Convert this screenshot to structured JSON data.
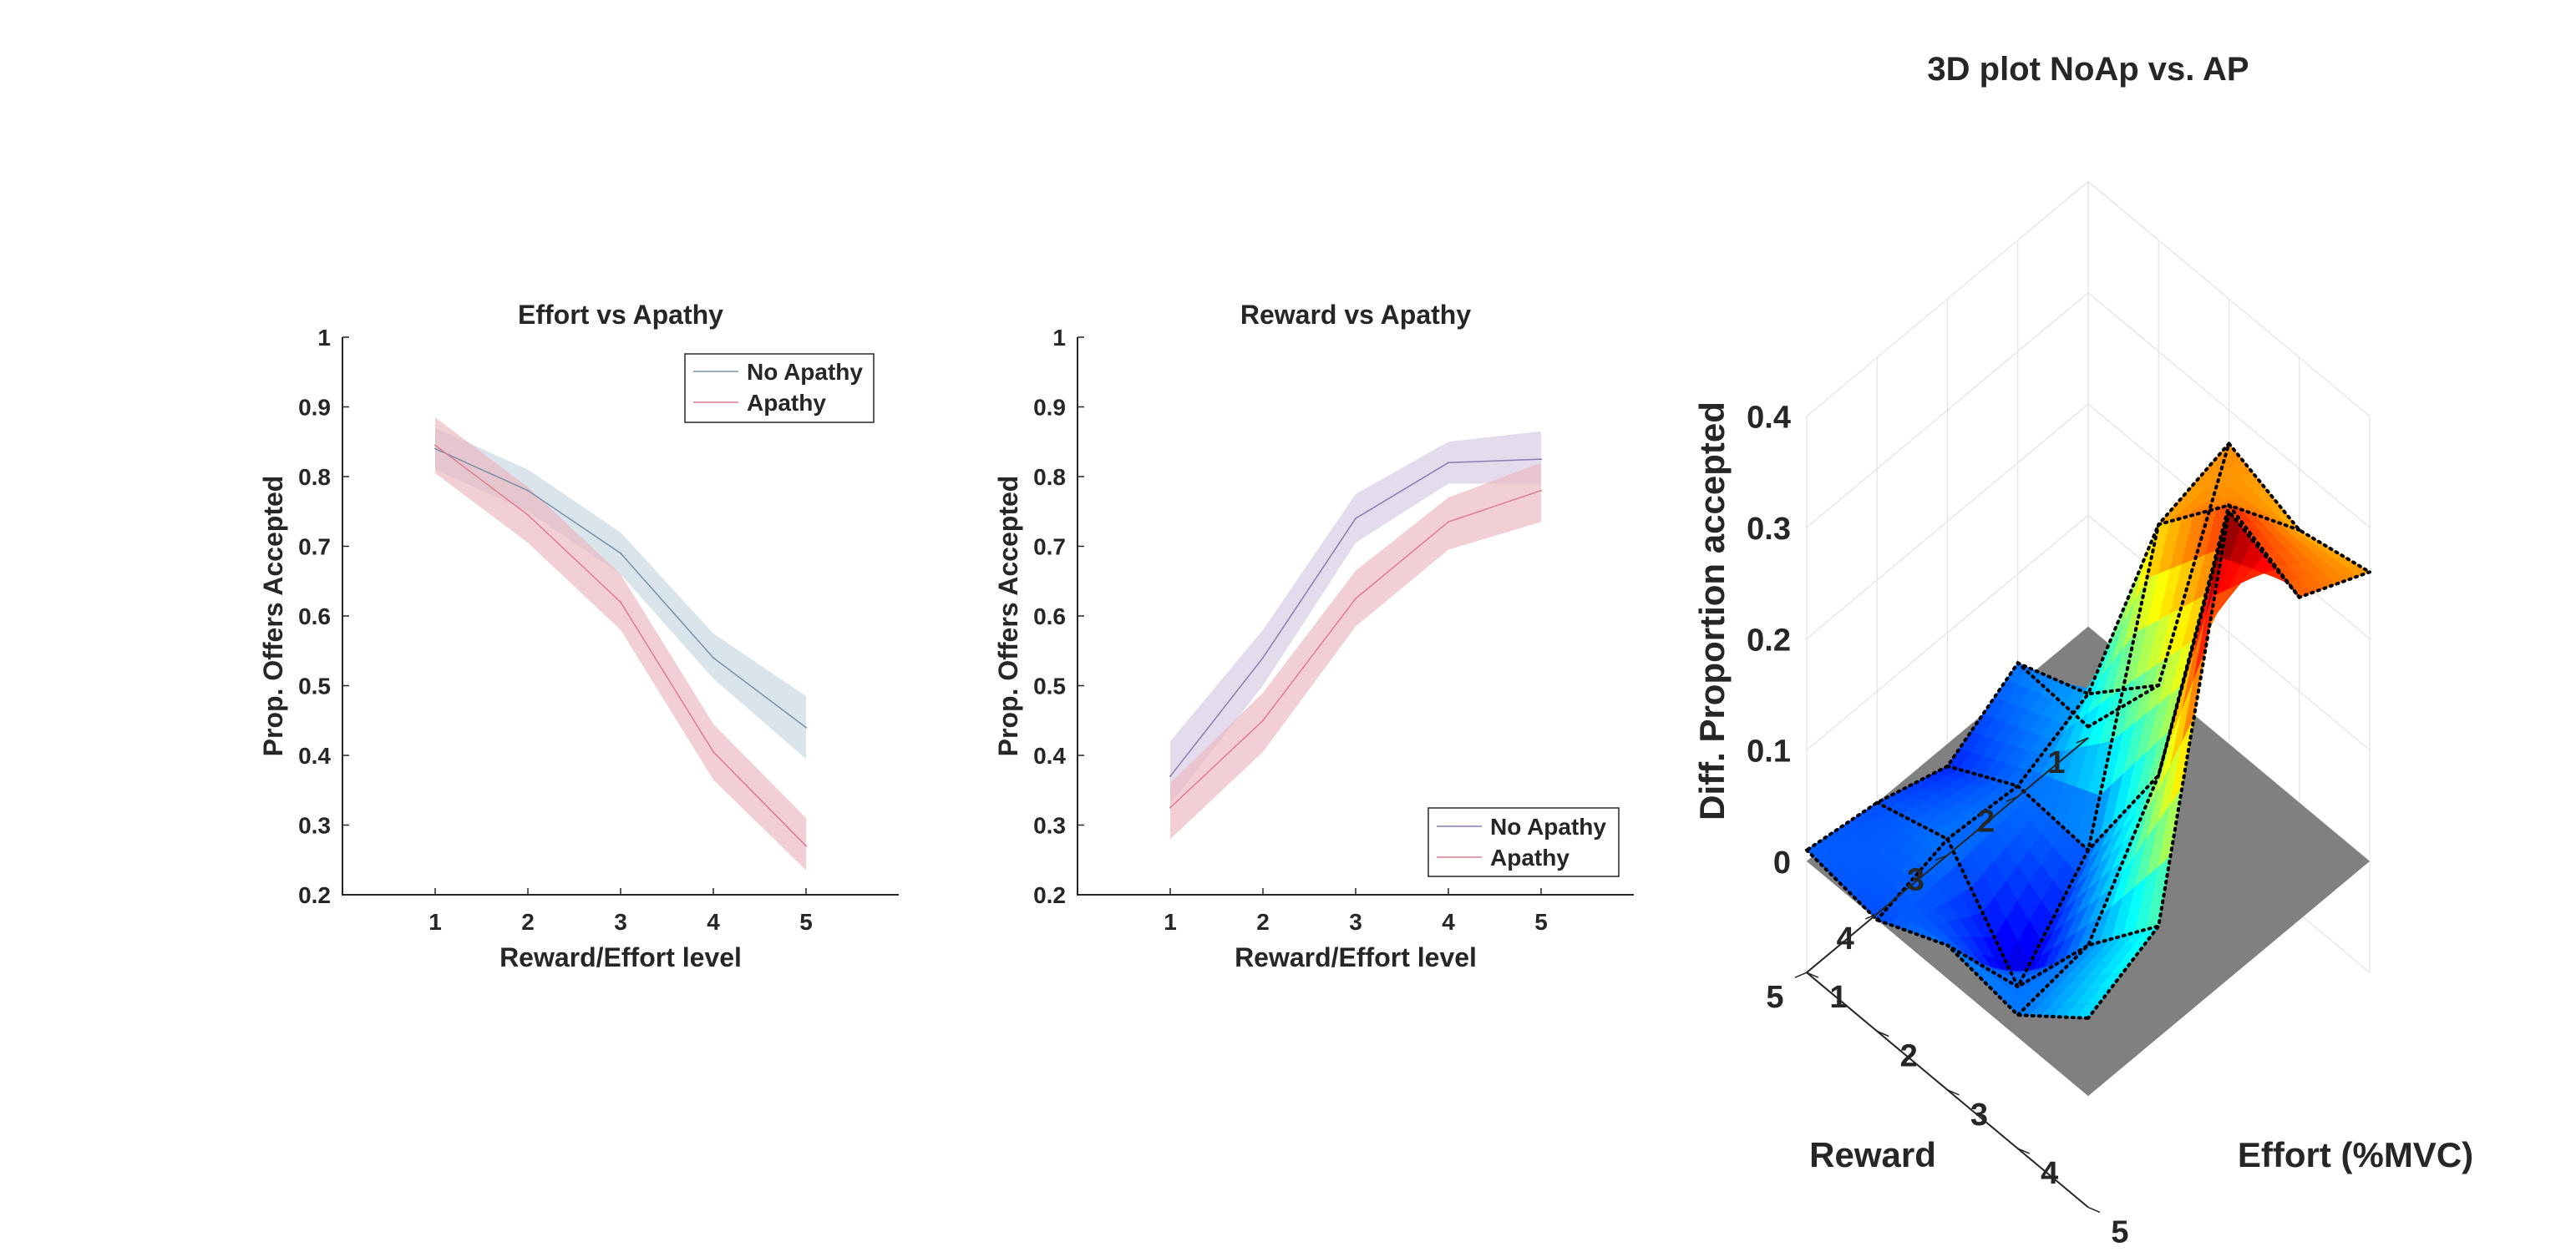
{
  "chart_data": [
    {
      "type": "line",
      "title": "Effort vs Apathy",
      "xlabel": "Reward/Effort level",
      "ylabel": "Prop. Offers Accepted",
      "x": [
        1,
        2,
        3,
        4,
        5
      ],
      "xticks": [
        "1",
        "2",
        "3",
        "4",
        "5"
      ],
      "yticks": [
        "0.2",
        "0.3",
        "0.4",
        "0.5",
        "0.6",
        "0.7",
        "0.8",
        "0.9",
        "1"
      ],
      "xlim": [
        0,
        6
      ],
      "ylim": [
        0.2,
        1
      ],
      "legend": "top-right",
      "series": [
        {
          "name": "No Apathy",
          "values": [
            0.84,
            0.78,
            0.69,
            0.54,
            0.44
          ],
          "lower": [
            0.81,
            0.75,
            0.66,
            0.51,
            0.395
          ],
          "upper": [
            0.87,
            0.81,
            0.72,
            0.575,
            0.485
          ],
          "color": "#7a8fa8",
          "band": "#c4d5e0"
        },
        {
          "name": "Apathy",
          "values": [
            0.845,
            0.745,
            0.62,
            0.405,
            0.27
          ],
          "lower": [
            0.805,
            0.705,
            0.58,
            0.365,
            0.235
          ],
          "upper": [
            0.885,
            0.785,
            0.66,
            0.445,
            0.31
          ],
          "color": "#e07a8e",
          "band": "#ebb5be"
        }
      ]
    },
    {
      "type": "line",
      "title": "Reward vs Apathy",
      "xlabel": "Reward/Effort level",
      "ylabel": "Prop. Offers Accepted",
      "x": [
        1,
        2,
        3,
        4,
        5
      ],
      "xticks": [
        "1",
        "2",
        "3",
        "4",
        "5"
      ],
      "yticks": [
        "0.2",
        "0.3",
        "0.4",
        "0.5",
        "0.6",
        "0.7",
        "0.8",
        "0.9",
        "1"
      ],
      "xlim": [
        0,
        6
      ],
      "ylim": [
        0.2,
        1
      ],
      "legend": "bottom-right",
      "series": [
        {
          "name": "No Apathy",
          "values": [
            0.37,
            0.54,
            0.74,
            0.82,
            0.825
          ],
          "lower": [
            0.33,
            0.5,
            0.705,
            0.79,
            0.79
          ],
          "upper": [
            0.42,
            0.58,
            0.775,
            0.85,
            0.865
          ],
          "color": "#8e7ab3",
          "band": "#d5c9e2"
        },
        {
          "name": "Apathy",
          "values": [
            0.325,
            0.45,
            0.625,
            0.735,
            0.78
          ],
          "lower": [
            0.28,
            0.405,
            0.585,
            0.695,
            0.735
          ],
          "upper": [
            0.36,
            0.49,
            0.665,
            0.77,
            0.82
          ],
          "color": "#e07a8e",
          "band": "#ebb5be"
        }
      ]
    },
    {
      "type": "surface3d",
      "title": "3D plot NoAp vs. AP",
      "xlabel": "Reward",
      "ylabel": "Effort (%MVC)",
      "zlabel": "Diff. Proportion accepted",
      "reward_ticks": [
        "1",
        "2",
        "3",
        "4",
        "5"
      ],
      "effort_ticks": [
        "1",
        "2",
        "3",
        "4",
        "5"
      ],
      "zticks": [
        "0",
        "0.1",
        "0.2",
        "0.3",
        "0.4"
      ],
      "zlim": [
        -0.1,
        0.4
      ],
      "colormap": "jet",
      "floor_color": "#808080",
      "z": [
        [
          -0.09,
          0.0,
          0.27,
          0.245,
          0.26
        ],
        [
          0.02,
          0.045,
          0.25,
          0.32,
          0.29
        ],
        [
          -0.02,
          0.015,
          0.01,
          0.13,
          0.42
        ],
        [
          0.0,
          0.02,
          -0.06,
          0.03,
          0.1
        ],
        [
          0.01,
          0.0,
          0.03,
          0.02,
          0.07
        ]
      ]
    }
  ]
}
